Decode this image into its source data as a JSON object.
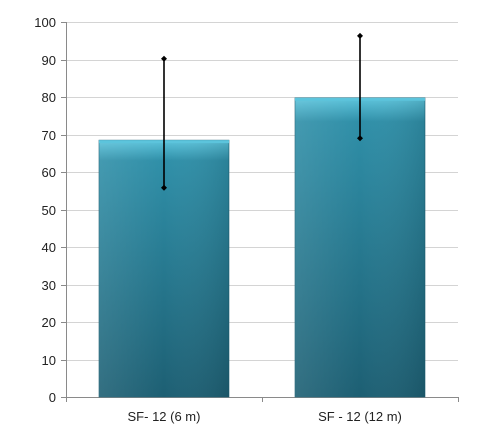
{
  "chart_data": {
    "type": "bar",
    "categories": [
      "SF- 12 (6 m)",
      "SF - 12 (12 m)"
    ],
    "values": [
      68.5,
      79.8
    ],
    "error_bars": [
      {
        "low": 55.8,
        "high": 90.2
      },
      {
        "low": 69.0,
        "high": 96.3
      }
    ],
    "ylim": [
      0,
      100
    ],
    "yticks": [
      0,
      10,
      20,
      30,
      40,
      50,
      60,
      70,
      80,
      90,
      100
    ],
    "ytick_labels": [
      "0",
      "10",
      "20",
      "30",
      "40",
      "50",
      "60",
      "70",
      "80",
      "90",
      "100"
    ],
    "grid": true,
    "bar_color": "#2f8fa8",
    "bar_top_color": "#5cc4dc",
    "bar_bottom_color": "#1d5f73",
    "error_bar_color": "#000000",
    "grid_color": "#d4d4d4",
    "axis_color": "#8a8a8a"
  }
}
